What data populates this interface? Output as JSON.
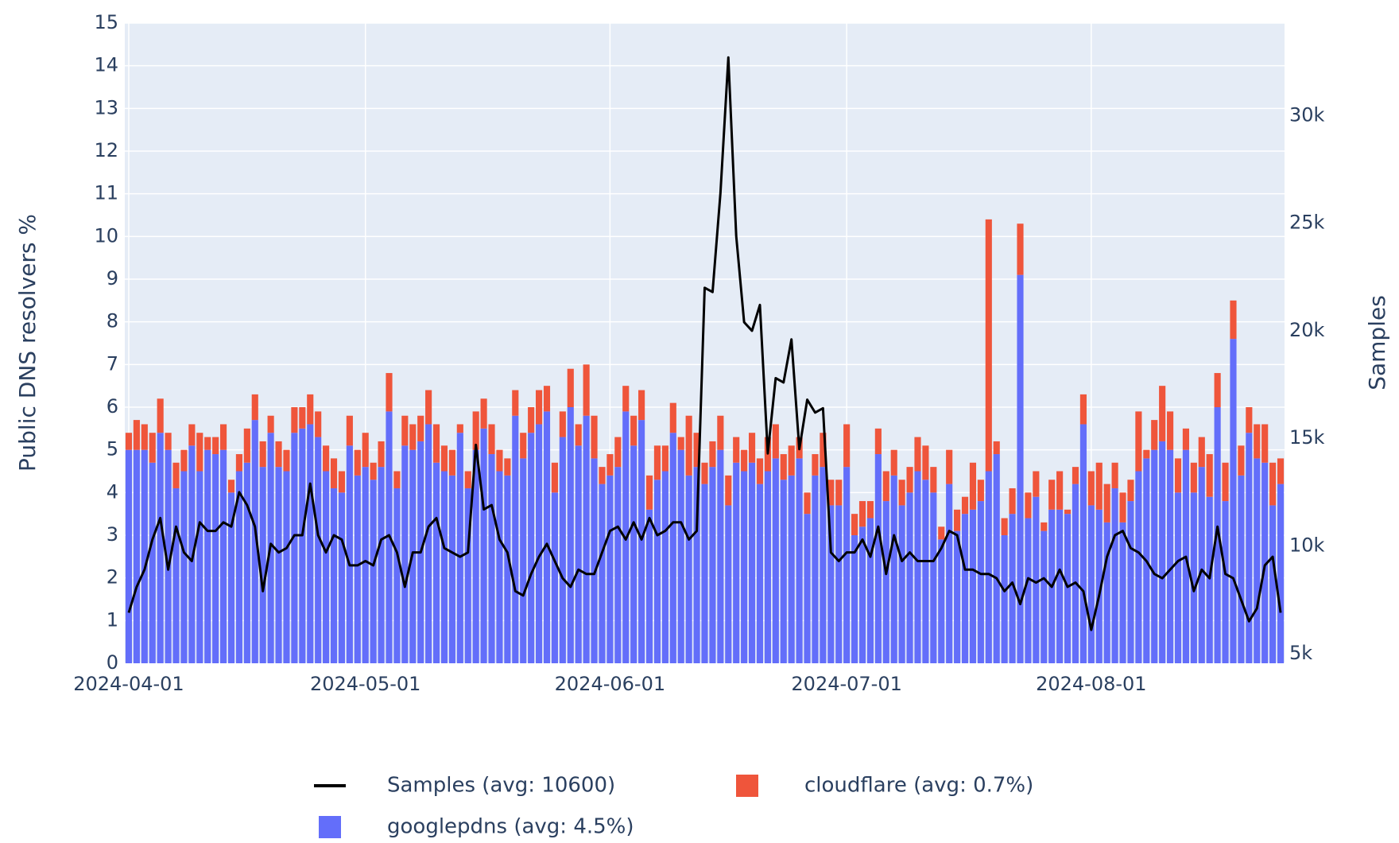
{
  "chart_data": {
    "type": "bar",
    "barmode": "stack",
    "ylabel": "Public DNS resolvers %",
    "y2label": "Samples",
    "ylim": [
      0,
      15
    ],
    "yticks": [
      0,
      1,
      2,
      3,
      4,
      5,
      6,
      7,
      8,
      9,
      10,
      11,
      12,
      13,
      14,
      15
    ],
    "y2lim": [
      4550,
      34300
    ],
    "y2ticks": [
      {
        "value": 5000,
        "label": "5k"
      },
      {
        "value": 10000,
        "label": "10k"
      },
      {
        "value": 15000,
        "label": "15k"
      },
      {
        "value": 20000,
        "label": "20k"
      },
      {
        "value": 25000,
        "label": "25k"
      },
      {
        "value": 30000,
        "label": "30k"
      }
    ],
    "xlim": [
      "2024-03-31 12:00",
      "2024-08-25 12:00"
    ],
    "xticks": [
      "2024-04-01",
      "2024-05-01",
      "2024-06-01",
      "2024-07-01",
      "2024-08-01"
    ],
    "grid": true,
    "legend": "bottom",
    "x": [
      "2024-04-01",
      "2024-04-02",
      "2024-04-03",
      "2024-04-04",
      "2024-04-05",
      "2024-04-06",
      "2024-04-07",
      "2024-04-08",
      "2024-04-09",
      "2024-04-10",
      "2024-04-11",
      "2024-04-12",
      "2024-04-13",
      "2024-04-14",
      "2024-04-15",
      "2024-04-16",
      "2024-04-17",
      "2024-04-18",
      "2024-04-19",
      "2024-04-20",
      "2024-04-21",
      "2024-04-22",
      "2024-04-23",
      "2024-04-24",
      "2024-04-25",
      "2024-04-26",
      "2024-04-27",
      "2024-04-28",
      "2024-04-29",
      "2024-04-30",
      "2024-05-01",
      "2024-05-02",
      "2024-05-03",
      "2024-05-04",
      "2024-05-05",
      "2024-05-06",
      "2024-05-07",
      "2024-05-08",
      "2024-05-09",
      "2024-05-10",
      "2024-05-11",
      "2024-05-12",
      "2024-05-13",
      "2024-05-14",
      "2024-05-15",
      "2024-05-16",
      "2024-05-17",
      "2024-05-18",
      "2024-05-19",
      "2024-05-20",
      "2024-05-21",
      "2024-05-22",
      "2024-05-23",
      "2024-05-24",
      "2024-05-25",
      "2024-05-26",
      "2024-05-27",
      "2024-05-28",
      "2024-05-29",
      "2024-05-30",
      "2024-05-31",
      "2024-06-01",
      "2024-06-02",
      "2024-06-03",
      "2024-06-04",
      "2024-06-05",
      "2024-06-06",
      "2024-06-07",
      "2024-06-08",
      "2024-06-09",
      "2024-06-10",
      "2024-06-11",
      "2024-06-12",
      "2024-06-13",
      "2024-06-14",
      "2024-06-15",
      "2024-06-16",
      "2024-06-17",
      "2024-06-18",
      "2024-06-19",
      "2024-06-20",
      "2024-06-21",
      "2024-06-22",
      "2024-06-23",
      "2024-06-24",
      "2024-06-25",
      "2024-06-26",
      "2024-06-27",
      "2024-06-28",
      "2024-06-29",
      "2024-06-30",
      "2024-07-01",
      "2024-07-02",
      "2024-07-03",
      "2024-07-04",
      "2024-07-05",
      "2024-07-06",
      "2024-07-07",
      "2024-07-08",
      "2024-07-09",
      "2024-07-10",
      "2024-07-11",
      "2024-07-12",
      "2024-07-13",
      "2024-07-14",
      "2024-07-15",
      "2024-07-16",
      "2024-07-17",
      "2024-07-18",
      "2024-07-19",
      "2024-07-20",
      "2024-07-21",
      "2024-07-22",
      "2024-07-23",
      "2024-07-24",
      "2024-07-25",
      "2024-07-26",
      "2024-07-27",
      "2024-07-28",
      "2024-07-29",
      "2024-07-30",
      "2024-07-31",
      "2024-08-01",
      "2024-08-02",
      "2024-08-03",
      "2024-08-04",
      "2024-08-05",
      "2024-08-06",
      "2024-08-07",
      "2024-08-08",
      "2024-08-09",
      "2024-08-10",
      "2024-08-11",
      "2024-08-12",
      "2024-08-13",
      "2024-08-14",
      "2024-08-15",
      "2024-08-16",
      "2024-08-17",
      "2024-08-18",
      "2024-08-19",
      "2024-08-20",
      "2024-08-21",
      "2024-08-22",
      "2024-08-23",
      "2024-08-24",
      "2024-08-25"
    ],
    "series": [
      {
        "name": "googlepdns (avg: 4.5%)",
        "type": "bar",
        "color": "#636efa",
        "values": [
          5.0,
          5.0,
          5.0,
          4.7,
          5.4,
          5.0,
          4.1,
          4.5,
          5.1,
          4.5,
          5.0,
          4.9,
          5.0,
          4.0,
          4.5,
          4.7,
          5.7,
          4.6,
          5.4,
          4.6,
          4.5,
          5.4,
          5.5,
          5.6,
          5.3,
          4.5,
          4.1,
          4.0,
          5.1,
          4.4,
          4.6,
          4.3,
          4.6,
          5.9,
          4.1,
          5.1,
          5.0,
          5.2,
          5.6,
          4.7,
          4.5,
          4.4,
          5.4,
          4.1,
          5.0,
          5.5,
          4.9,
          4.5,
          4.4,
          5.8,
          4.8,
          5.4,
          5.6,
          5.9,
          4.0,
          5.3,
          6.0,
          5.1,
          5.8,
          4.8,
          4.2,
          4.4,
          4.6,
          5.9,
          5.1,
          5.7,
          3.6,
          4.3,
          4.5,
          5.4,
          5.0,
          4.4,
          4.6,
          4.2,
          4.6,
          5.0,
          3.7,
          4.7,
          4.5,
          4.7,
          4.2,
          4.5,
          4.8,
          4.3,
          4.4,
          4.8,
          3.5,
          4.4,
          4.6,
          3.7,
          3.7,
          4.6,
          3.0,
          3.2,
          3.4,
          4.9,
          3.8,
          4.4,
          3.7,
          4.0,
          4.5,
          4.3,
          4.0,
          2.9,
          4.2,
          3.1,
          3.5,
          3.6,
          3.8,
          4.5,
          4.9,
          3.0,
          3.5,
          9.1,
          3.4,
          3.9,
          3.1,
          3.6,
          3.6,
          3.5,
          4.2,
          5.6,
          3.7,
          3.6,
          3.3,
          4.1,
          3.3,
          3.8,
          4.5,
          4.8,
          5.0,
          5.2,
          5.0,
          4.0,
          5.0,
          4.0,
          4.6,
          3.9,
          6.0,
          3.8,
          7.6,
          4.4,
          5.4,
          4.8,
          4.7,
          3.7,
          4.2
        ]
      },
      {
        "name": "cloudflare (avg: 0.7%)",
        "type": "bar",
        "color": "#ef553b",
        "values": [
          0.4,
          0.7,
          0.6,
          0.7,
          0.8,
          0.4,
          0.6,
          0.5,
          0.5,
          0.9,
          0.3,
          0.4,
          0.6,
          0.3,
          0.4,
          0.8,
          0.6,
          0.6,
          0.4,
          0.6,
          0.5,
          0.6,
          0.5,
          0.7,
          0.6,
          0.6,
          0.7,
          0.5,
          0.7,
          0.6,
          0.8,
          0.4,
          0.6,
          0.9,
          0.4,
          0.7,
          0.6,
          0.6,
          0.8,
          0.9,
          0.6,
          0.6,
          0.2,
          0.4,
          0.9,
          0.7,
          0.7,
          0.5,
          0.4,
          0.6,
          0.6,
          0.6,
          0.8,
          0.6,
          0.7,
          0.6,
          0.9,
          0.5,
          1.2,
          1.0,
          0.4,
          0.5,
          0.7,
          0.6,
          0.7,
          0.7,
          0.8,
          0.8,
          0.6,
          0.7,
          0.3,
          1.4,
          0.8,
          0.5,
          0.6,
          0.8,
          0.7,
          0.6,
          0.5,
          0.7,
          0.6,
          0.8,
          0.8,
          0.6,
          0.7,
          0.5,
          0.5,
          0.5,
          0.8,
          0.6,
          0.6,
          1.0,
          0.5,
          0.6,
          0.4,
          0.6,
          0.7,
          0.6,
          0.6,
          0.6,
          0.8,
          0.8,
          0.6,
          0.3,
          0.8,
          0.5,
          0.4,
          1.1,
          0.5,
          5.9,
          0.3,
          0.4,
          0.6,
          1.2,
          0.6,
          0.6,
          0.2,
          0.7,
          0.9,
          0.1,
          0.4,
          0.7,
          0.8,
          1.1,
          0.9,
          0.6,
          0.7,
          0.5,
          1.4,
          0.2,
          0.7,
          1.3,
          0.9,
          0.8,
          0.5,
          0.7,
          0.7,
          1.0,
          0.8,
          0.9,
          0.9,
          0.7,
          0.6,
          0.8,
          0.9,
          1.0,
          0.6
        ]
      },
      {
        "name": "Samples (avg: 10600)",
        "type": "line",
        "axis": "y2",
        "color": "#000000",
        "values": [
          6900,
          8100,
          8900,
          10300,
          11300,
          8900,
          10900,
          9700,
          9300,
          11100,
          10700,
          10700,
          11100,
          10900,
          12500,
          11900,
          10900,
          7900,
          10100,
          9700,
          9900,
          10500,
          10500,
          12900,
          10500,
          9700,
          10500,
          10300,
          9100,
          9100,
          9300,
          9100,
          10300,
          10500,
          9700,
          8100,
          9700,
          9700,
          10900,
          11300,
          9900,
          9700,
          9500,
          9700,
          14700,
          11700,
          11900,
          10300,
          9700,
          7900,
          7700,
          8700,
          9500,
          10100,
          9300,
          8500,
          8100,
          8900,
          8700,
          8700,
          9700,
          10700,
          10900,
          10300,
          11100,
          10300,
          11300,
          10500,
          10700,
          11100,
          11100,
          10300,
          10700,
          22000,
          21800,
          26400,
          32700,
          24400,
          20400,
          20000,
          21200,
          14300,
          17800,
          17600,
          19600,
          14500,
          16800,
          16200,
          16400,
          9700,
          9300,
          9700,
          9700,
          10300,
          9500,
          10900,
          8700,
          10500,
          9300,
          9700,
          9300,
          9300,
          9300,
          9900,
          10700,
          10500,
          8900,
          8900,
          8700,
          8700,
          8500,
          7900,
          8300,
          7300,
          8500,
          8300,
          8500,
          8100,
          8900,
          8100,
          8300,
          7900,
          6100,
          7700,
          9500,
          10500,
          10700,
          9900,
          9700,
          9300,
          8700,
          8500,
          8900,
          9300,
          9500,
          7900,
          8900,
          8500,
          10900,
          8700,
          8500,
          7500,
          6500,
          7100,
          9100,
          9500,
          6900
        ]
      }
    ]
  }
}
